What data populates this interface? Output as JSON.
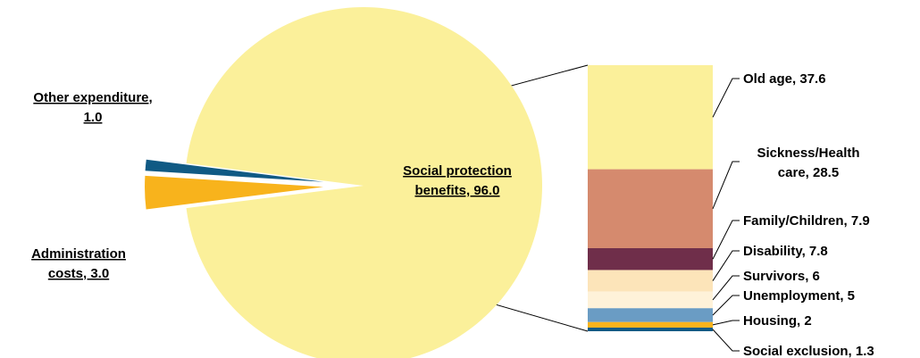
{
  "chart_data": {
    "type": "pie",
    "subtype": "pie-of-bar",
    "pie": {
      "slices": [
        {
          "name": "Social protection benefits",
          "value": 96.0,
          "label_lines": [
            "Social protection",
            "benefits, 96.0"
          ],
          "color": "#FBF09A"
        },
        {
          "name": "Administration costs",
          "value": 3.0,
          "label_lines": [
            "Administration",
            "costs, 3.0"
          ],
          "color": "#F8B31C"
        },
        {
          "name": "Other expenditure",
          "value": 1.0,
          "label_lines": [
            "Other expenditure,",
            "1.0"
          ],
          "color": "#105A84"
        }
      ]
    },
    "bar": {
      "segments": [
        {
          "name": "Old age",
          "value": 37.6,
          "label_lines": [
            "Old age, 37.6"
          ],
          "color": "#FBF09A"
        },
        {
          "name": "Sickness/Health care",
          "value": 28.5,
          "label_lines": [
            "Sickness/Health",
            "care, 28.5"
          ],
          "color": "#D58A6E"
        },
        {
          "name": "Family/Children",
          "value": 7.9,
          "label_lines": [
            "Family/Children, 7.9"
          ],
          "color": "#6F2E4A"
        },
        {
          "name": "Disability",
          "value": 7.8,
          "label_lines": [
            "Disability, 7.8"
          ],
          "color": "#FCE4B9"
        },
        {
          "name": "Survivors",
          "value": 6,
          "label_lines": [
            "Survivors, 6"
          ],
          "color": "#FEF2D9"
        },
        {
          "name": "Unemployment",
          "value": 5,
          "label_lines": [
            "Unemployment, 5"
          ],
          "color": "#6A9CC4"
        },
        {
          "name": "Housing",
          "value": 2,
          "label_lines": [
            "Housing, 2"
          ],
          "color": "#F8B31C"
        },
        {
          "name": "Social exclusion",
          "value": 1.3,
          "label_lines": [
            "Social exclusion, 1.3"
          ],
          "color": "#105A84"
        }
      ]
    }
  }
}
